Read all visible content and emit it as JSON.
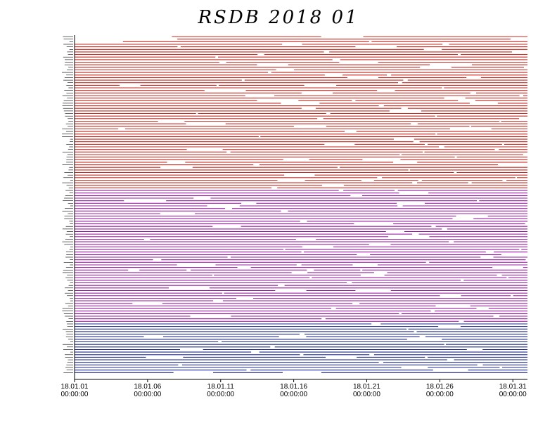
{
  "chart_data": {
    "type": "timeline",
    "title": "RSDB  2018  01",
    "x_ticks": [
      {
        "date": "18.01.01",
        "time": "00:00:00"
      },
      {
        "date": "18.01.06",
        "time": "00:00:00"
      },
      {
        "date": "18.01.11",
        "time": "00:00:00"
      },
      {
        "date": "18.01.16",
        "time": "00:00:00"
      },
      {
        "date": "18.01.21",
        "time": "00:00:00"
      },
      {
        "date": "18.01.26",
        "time": "00:00:00"
      },
      {
        "date": "18.01.31",
        "time": "00:00:00"
      }
    ],
    "x_range_days": [
      0,
      31
    ],
    "series_groups": [
      {
        "color": "#c8281e",
        "rows": 60
      },
      {
        "color": "#9b1fa3",
        "rows": 52
      },
      {
        "color": "#1e2a8c",
        "rows": 20
      }
    ],
    "grid": false,
    "legend": "none"
  }
}
